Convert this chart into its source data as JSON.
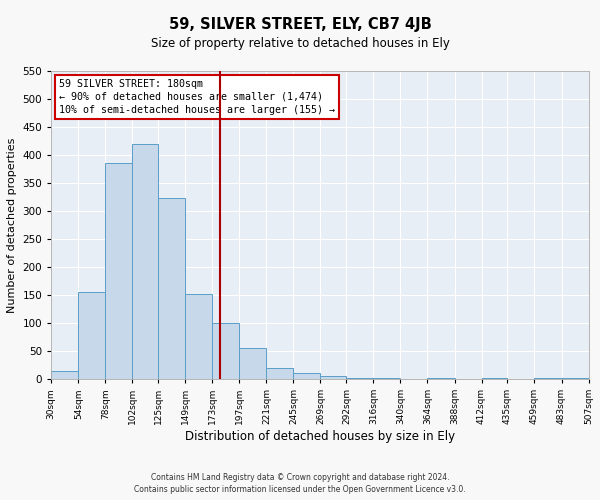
{
  "title": "59, SILVER STREET, ELY, CB7 4JB",
  "subtitle": "Size of property relative to detached houses in Ely",
  "xlabel": "Distribution of detached houses by size in Ely",
  "ylabel": "Number of detached properties",
  "bar_color": "#c8d8eb",
  "bar_edge_color": "#5a9ec8",
  "bg_color": "#e8eef5",
  "grid_color": "#ffffff",
  "vline_x": 180,
  "vline_color": "#aa0000",
  "bin_edges": [
    30,
    54,
    78,
    102,
    125,
    149,
    173,
    197,
    221,
    245,
    269,
    292,
    316,
    340,
    364,
    388,
    412,
    435,
    459,
    483,
    507
  ],
  "bar_heights": [
    15,
    155,
    385,
    420,
    323,
    152,
    100,
    55,
    20,
    10,
    5,
    2,
    2,
    0,
    2,
    0,
    2,
    0,
    2,
    2
  ],
  "tick_labels": [
    "30sqm",
    "54sqm",
    "78sqm",
    "102sqm",
    "125sqm",
    "149sqm",
    "173sqm",
    "197sqm",
    "221sqm",
    "245sqm",
    "269sqm",
    "292sqm",
    "316sqm",
    "340sqm",
    "364sqm",
    "388sqm",
    "412sqm",
    "435sqm",
    "459sqm",
    "483sqm",
    "507sqm"
  ],
  "ylim": [
    0,
    550
  ],
  "yticks": [
    0,
    50,
    100,
    150,
    200,
    250,
    300,
    350,
    400,
    450,
    500,
    550
  ],
  "annotation_title": "59 SILVER STREET: 180sqm",
  "annotation_line1": "← 90% of detached houses are smaller (1,474)",
  "annotation_line2": "10% of semi-detached houses are larger (155) →",
  "footnote1": "Contains HM Land Registry data © Crown copyright and database right 2024.",
  "footnote2": "Contains public sector information licensed under the Open Government Licence v3.0."
}
